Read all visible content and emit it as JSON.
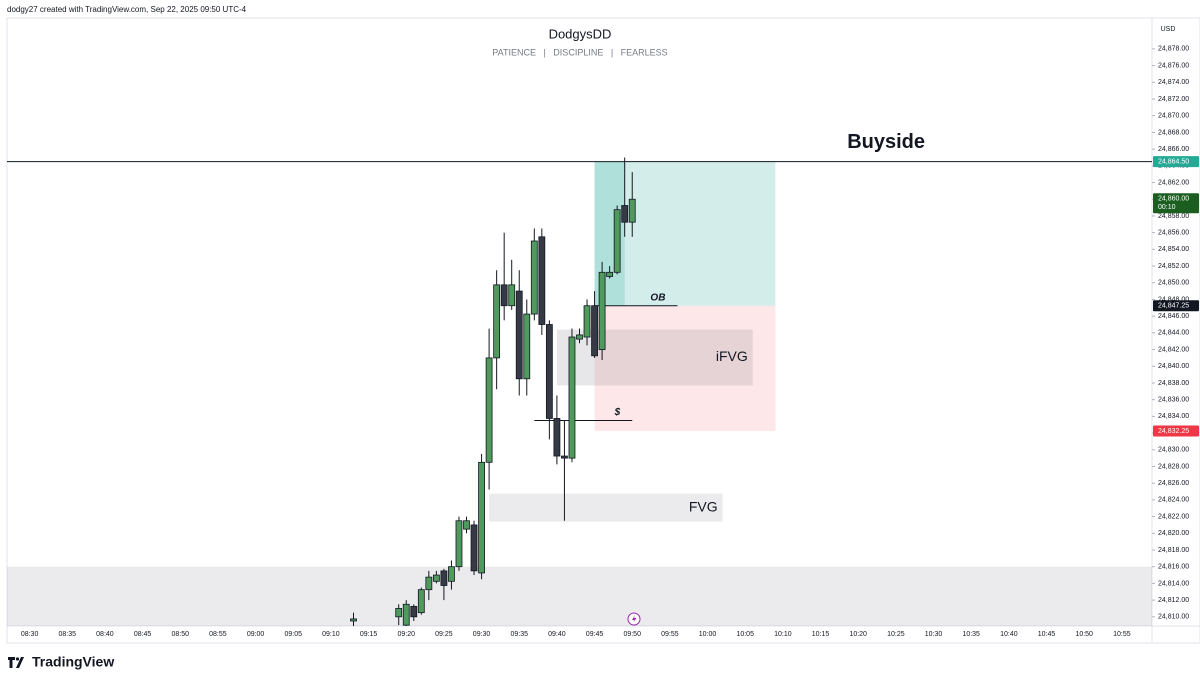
{
  "header": {
    "credit": "dodgy27 created with TradingView.com, Sep 22, 2025 09:50 UTC-4"
  },
  "footer": {
    "brand": "TradingView"
  },
  "chart_data": {
    "type": "candlestick",
    "title": "DodgysDD",
    "subtitle": "PATIENCE   |   DISCIPLINE   |   FEARLESS",
    "currency": "USD",
    "x": [
      "09:13",
      "09:19",
      "09:20",
      "09:21",
      "09:22",
      "09:23",
      "09:24",
      "09:25",
      "09:26",
      "09:27",
      "09:28",
      "09:29",
      "09:30",
      "09:31",
      "09:32",
      "09:33",
      "09:34",
      "09:35",
      "09:36",
      "09:37",
      "09:38",
      "09:39",
      "09:40",
      "09:41",
      "09:42",
      "09:43",
      "09:44",
      "09:45",
      "09:46",
      "09:47",
      "09:48",
      "09:49",
      "09:50"
    ],
    "open": [
      24809.5,
      24810,
      24809,
      24811.25,
      24810.5,
      24813.25,
      24814.25,
      24815.5,
      24814.25,
      24816,
      24820.5,
      24821,
      24815.25,
      24828.5,
      24841,
      24849.75,
      24847.25,
      24849,
      24838.5,
      24846.25,
      24855.5,
      24845,
      24833.75,
      24829.25,
      24829,
      24843.25,
      24843.5,
      24847.25,
      24842,
      24850.75,
      24851.25,
      24859.25,
      24857.25
    ],
    "high": [
      24810.5,
      24811.5,
      24812,
      24811.5,
      24813.5,
      24815.5,
      24815.5,
      24815.75,
      24816.75,
      24822,
      24822,
      24821.5,
      24829.5,
      24844.5,
      24851.5,
      24856,
      24852.75,
      24851.5,
      24848,
      24856.5,
      24856.5,
      24845.5,
      24836.5,
      24833.5,
      24844.5,
      24844.5,
      24848,
      24849,
      24852.5,
      24852,
      24859.25,
      24865,
      24863.25
    ],
    "low": [
      24808.5,
      24809,
      24808.75,
      24809.5,
      24810.25,
      24812,
      24814,
      24812,
      24813.25,
      24815.5,
      24820,
      24815,
      24814.5,
      24825.25,
      24837.25,
      24845.5,
      24846.75,
      24836.5,
      24836.5,
      24845.5,
      24843.75,
      24831.25,
      24828.25,
      24821.5,
      24828.5,
      24842.75,
      24842.5,
      24841,
      24840.75,
      24850.5,
      24851,
      24855.5,
      24855.5
    ],
    "close": [
      24809.75,
      24811,
      24811.5,
      24810,
      24813.25,
      24814.75,
      24815,
      24813.75,
      24816,
      24821.5,
      24821.5,
      24815.5,
      24828.5,
      24841,
      24849.75,
      24847.25,
      24849.75,
      24838.5,
      24846.25,
      24855,
      24845,
      24833.75,
      24829.25,
      24829,
      24843.5,
      24843.75,
      24847.25,
      24841.25,
      24851.25,
      24851.25,
      24858.75,
      24857.25,
      24860
    ],
    "up_color": "#4f9a5c",
    "down_color": "#363a45",
    "xlim": [
      "08:27",
      "10:59"
    ],
    "xticks": [
      "08:30",
      "08:35",
      "08:40",
      "08:45",
      "08:50",
      "08:55",
      "09:00",
      "09:05",
      "09:10",
      "09:15",
      "09:20",
      "09:25",
      "09:30",
      "09:35",
      "09:40",
      "09:45",
      "09:50",
      "09:55",
      "10:00",
      "10:05",
      "10:10",
      "10:15",
      "10:20",
      "10:25",
      "10:30",
      "10:35",
      "10:40",
      "10:45",
      "10:50",
      "10:55"
    ],
    "ylim": [
      24808.9,
      24881.7
    ],
    "yticks": [
      {
        "value": 24878,
        "label": "24,878.00"
      },
      {
        "value": 24876,
        "label": "24,876.00"
      },
      {
        "value": 24874,
        "label": "24,874.00"
      },
      {
        "value": 24872,
        "label": "24,872.00"
      },
      {
        "value": 24870,
        "label": "24,870.00"
      },
      {
        "value": 24868,
        "label": "24,868.00"
      },
      {
        "value": 24866,
        "label": "24,866.00"
      },
      {
        "value": 24864,
        "label": "24,864.00"
      },
      {
        "value": 24862,
        "label": "24,862.00"
      },
      {
        "value": 24860,
        "label": "24,860.00"
      },
      {
        "value": 24858,
        "label": "24,858.00"
      },
      {
        "value": 24856,
        "label": "24,856.00"
      },
      {
        "value": 24854,
        "label": "24,854.00"
      },
      {
        "value": 24852,
        "label": "24,852.00"
      },
      {
        "value": 24850,
        "label": "24,850.00"
      },
      {
        "value": 24848,
        "label": "24,848.00"
      },
      {
        "value": 24846,
        "label": "24,846.00"
      },
      {
        "value": 24844,
        "label": "24,844.00"
      },
      {
        "value": 24842,
        "label": "24,842.00"
      },
      {
        "value": 24840,
        "label": "24,840.00"
      },
      {
        "value": 24838,
        "label": "24,838.00"
      },
      {
        "value": 24836,
        "label": "24,836.00"
      },
      {
        "value": 24834,
        "label": "24,834.00"
      },
      {
        "value": 24832,
        "label": "24,832.00"
      },
      {
        "value": 24830,
        "label": "24,830.00"
      },
      {
        "value": 24828,
        "label": "24,828.00"
      },
      {
        "value": 24826,
        "label": "24,826.00"
      },
      {
        "value": 24824,
        "label": "24,824.00"
      },
      {
        "value": 24822,
        "label": "24,822.00"
      },
      {
        "value": 24820,
        "label": "24,820.00"
      },
      {
        "value": 24818,
        "label": "24,818.00"
      },
      {
        "value": 24816,
        "label": "24,816.00"
      },
      {
        "value": 24814,
        "label": "24,814.00"
      },
      {
        "value": 24812,
        "label": "24,812.00"
      },
      {
        "value": 24810,
        "label": "24,810.00"
      }
    ],
    "zones": [
      {
        "from": 24808.9,
        "to": 24816,
        "start": "08:27",
        "end": "10:59",
        "color": "rgba(120,123,134,0.15)"
      },
      {
        "from": 24847.25,
        "to": 24864.5,
        "start": "09:45",
        "end": "10:09",
        "color": "rgba(34,171,148,0.2)"
      },
      {
        "from": 24847.25,
        "to": 24864.5,
        "start": "09:45",
        "end": "09:49",
        "color": "rgba(34,171,148,0.2)"
      },
      {
        "from": 24832.25,
        "to": 24847.25,
        "start": "09:45",
        "end": "10:09",
        "color": "rgba(242,54,69,0.12)"
      },
      {
        "label": "iFVG",
        "from": 24837.7,
        "to": 24844.4,
        "start": "09:40",
        "end": "10:06",
        "color": "rgba(120,123,134,0.18)"
      },
      {
        "label": "FVG",
        "from": 24821.4,
        "to": 24824.75,
        "start": "09:31",
        "end": "10:02",
        "color": "rgba(120,123,134,0.15)"
      }
    ],
    "levels": [
      {
        "label": "Buyside",
        "price": 24864.5,
        "start": "08:27",
        "end": "10:59"
      },
      {
        "label": "OB",
        "price": 24847.25,
        "start": "09:45",
        "end": "09:56"
      },
      {
        "label": "$",
        "price": 24833.5,
        "start": "09:37",
        "end": "09:50"
      }
    ],
    "price_labels": [
      {
        "value": 24864.5,
        "label": "24,864.50",
        "color": "#22ab94"
      },
      {
        "value": 24860,
        "label": "24,860.00",
        "countdown": "00:10",
        "color": "#1b5e20"
      },
      {
        "value": 24847.25,
        "label": "24,847.25",
        "color": "#131722"
      },
      {
        "value": 24832.25,
        "label": "24,832.25",
        "color": "#f23645"
      }
    ]
  }
}
